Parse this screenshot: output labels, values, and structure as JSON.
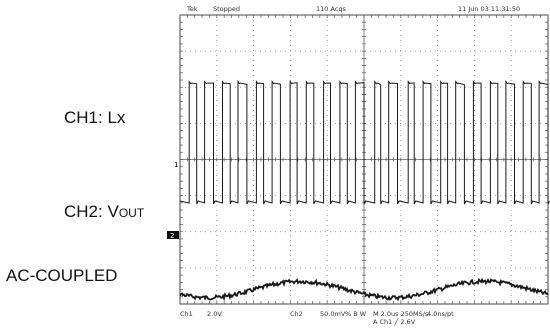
{
  "header": {
    "brand": "Tek",
    "state": "Stopped",
    "acq": "110 Acqs",
    "datetime": "11 Jun 03 11:31:50"
  },
  "labels": {
    "ch1_prefix": "CH1: ",
    "ch1_signal": "Lx",
    "ch2_prefix": "CH2: ",
    "ch2_v": "V",
    "ch2_sub": "OUT",
    "coupling": "AC-COUPLED"
  },
  "markers": {
    "ch1": "1",
    "ch2": "2"
  },
  "footer": {
    "ch1_name": "Ch1",
    "ch1_scale": "2.0V",
    "ch2_name": "Ch2",
    "ch2_scale": "50.0mV",
    "ch2_flag": "% B W",
    "timebase": "M 2.0us 250MS/s",
    "pt_rate": "4.0ns/pt",
    "trigger": "A Ch1 ╱ 2.6V"
  },
  "chart_data": {
    "type": "line",
    "grid": true,
    "divisions": {
      "x": 10,
      "y": 8
    },
    "series": [
      {
        "channel": "Ch1",
        "scale_v_per_div": 2.0,
        "waveform": "square",
        "switching_cycles_per_div": 2.2,
        "high_div": 3.1,
        "low_div": -0.15,
        "color": "#1a1a1a"
      },
      {
        "channel": "Ch2",
        "scale_mv_per_div": 50.0,
        "coupling": "AC",
        "ripple_peak_to_peak_div": 0.45,
        "ripple_periods_on_screen": 2,
        "color": "#1a1a1a"
      }
    ]
  }
}
